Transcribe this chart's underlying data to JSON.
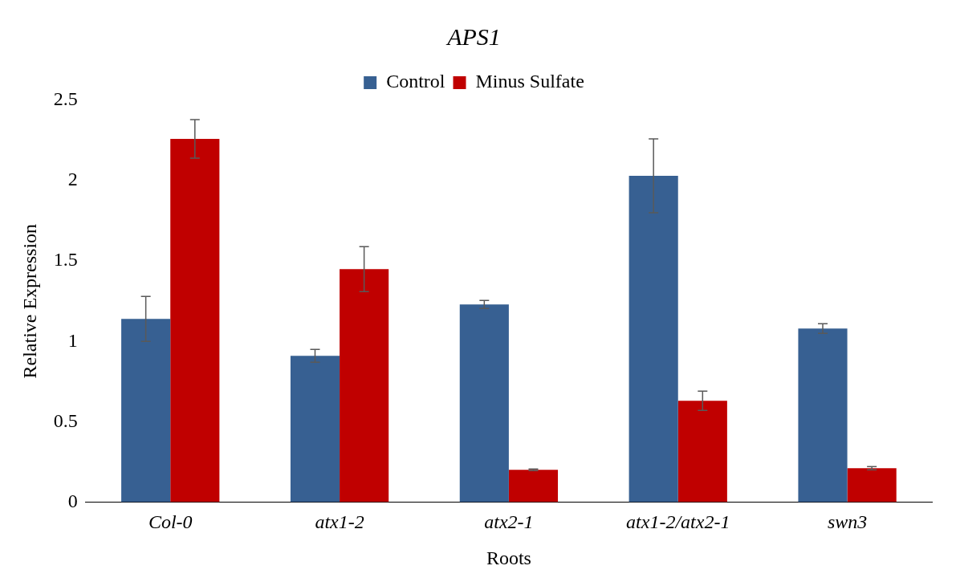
{
  "chart_data": {
    "type": "bar",
    "title": "APS1",
    "xlabel": "Roots",
    "ylabel": "Relative Expression",
    "categories": [
      "Col-0",
      "atx1-2",
      "atx2-1",
      "atx1-2/atx2-1",
      "swn3"
    ],
    "series": [
      {
        "name": "Control",
        "color": "#376092",
        "values": [
          1.14,
          0.91,
          1.23,
          2.03,
          1.08
        ],
        "errors": [
          0.14,
          0.04,
          0.025,
          0.23,
          0.03
        ]
      },
      {
        "name": "Minus Sulfate",
        "color": "#c00000",
        "values": [
          2.26,
          1.45,
          0.2,
          0.63,
          0.21
        ],
        "errors": [
          0.12,
          0.14,
          0.005,
          0.06,
          0.01
        ]
      }
    ],
    "ylim": [
      0,
      2.5
    ],
    "yticks": [
      0,
      0.5,
      1,
      1.5,
      2,
      2.5
    ],
    "grid": false,
    "legend": "top"
  }
}
